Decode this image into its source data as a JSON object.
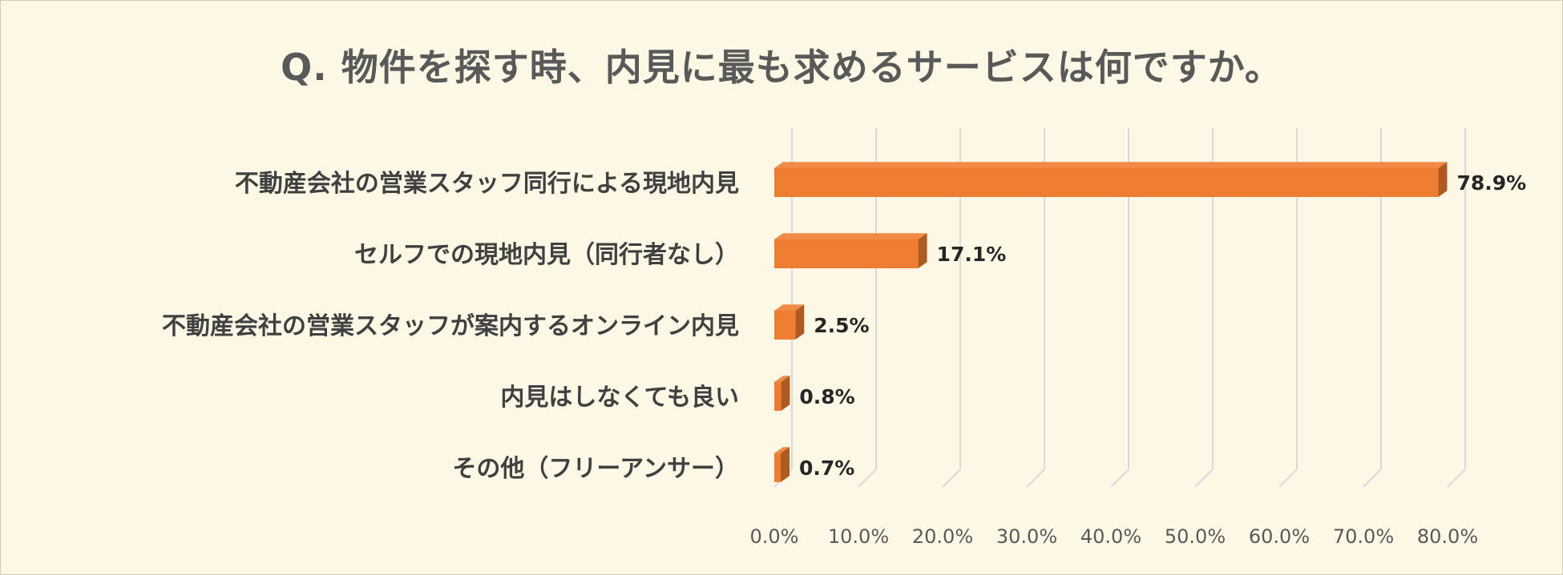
{
  "chart_data": {
    "type": "bar",
    "orientation": "horizontal",
    "style": "3d",
    "title": "Q. 物件を探す時、内見に最も求めるサービスは何ですか。",
    "categories": [
      "不動産会社の営業スタッフ同行による現地内見",
      "セルフでの現地内見（同行者なし）",
      "不動産会社の営業スタッフが案内するオンライン内見",
      "内見はしなくても良い",
      "その他（フリーアンサー）"
    ],
    "values": [
      78.9,
      17.1,
      2.5,
      0.8,
      0.7
    ],
    "value_labels": [
      "78.9%",
      "17.1%",
      "2.5%",
      "0.8%",
      "0.7%"
    ],
    "xticks": [
      "0.0%",
      "10.0%",
      "20.0%",
      "30.0%",
      "40.0%",
      "50.0%",
      "60.0%",
      "70.0%",
      "80.0%"
    ],
    "xlim": [
      0,
      80
    ],
    "grid": true,
    "legend": "none",
    "colors": {
      "bar_front": "#ed7d31",
      "bar_top": "#f08a45",
      "bar_side": "#ae5a21",
      "grid": "#d9d9d9",
      "background": "#fdf8e6"
    }
  }
}
